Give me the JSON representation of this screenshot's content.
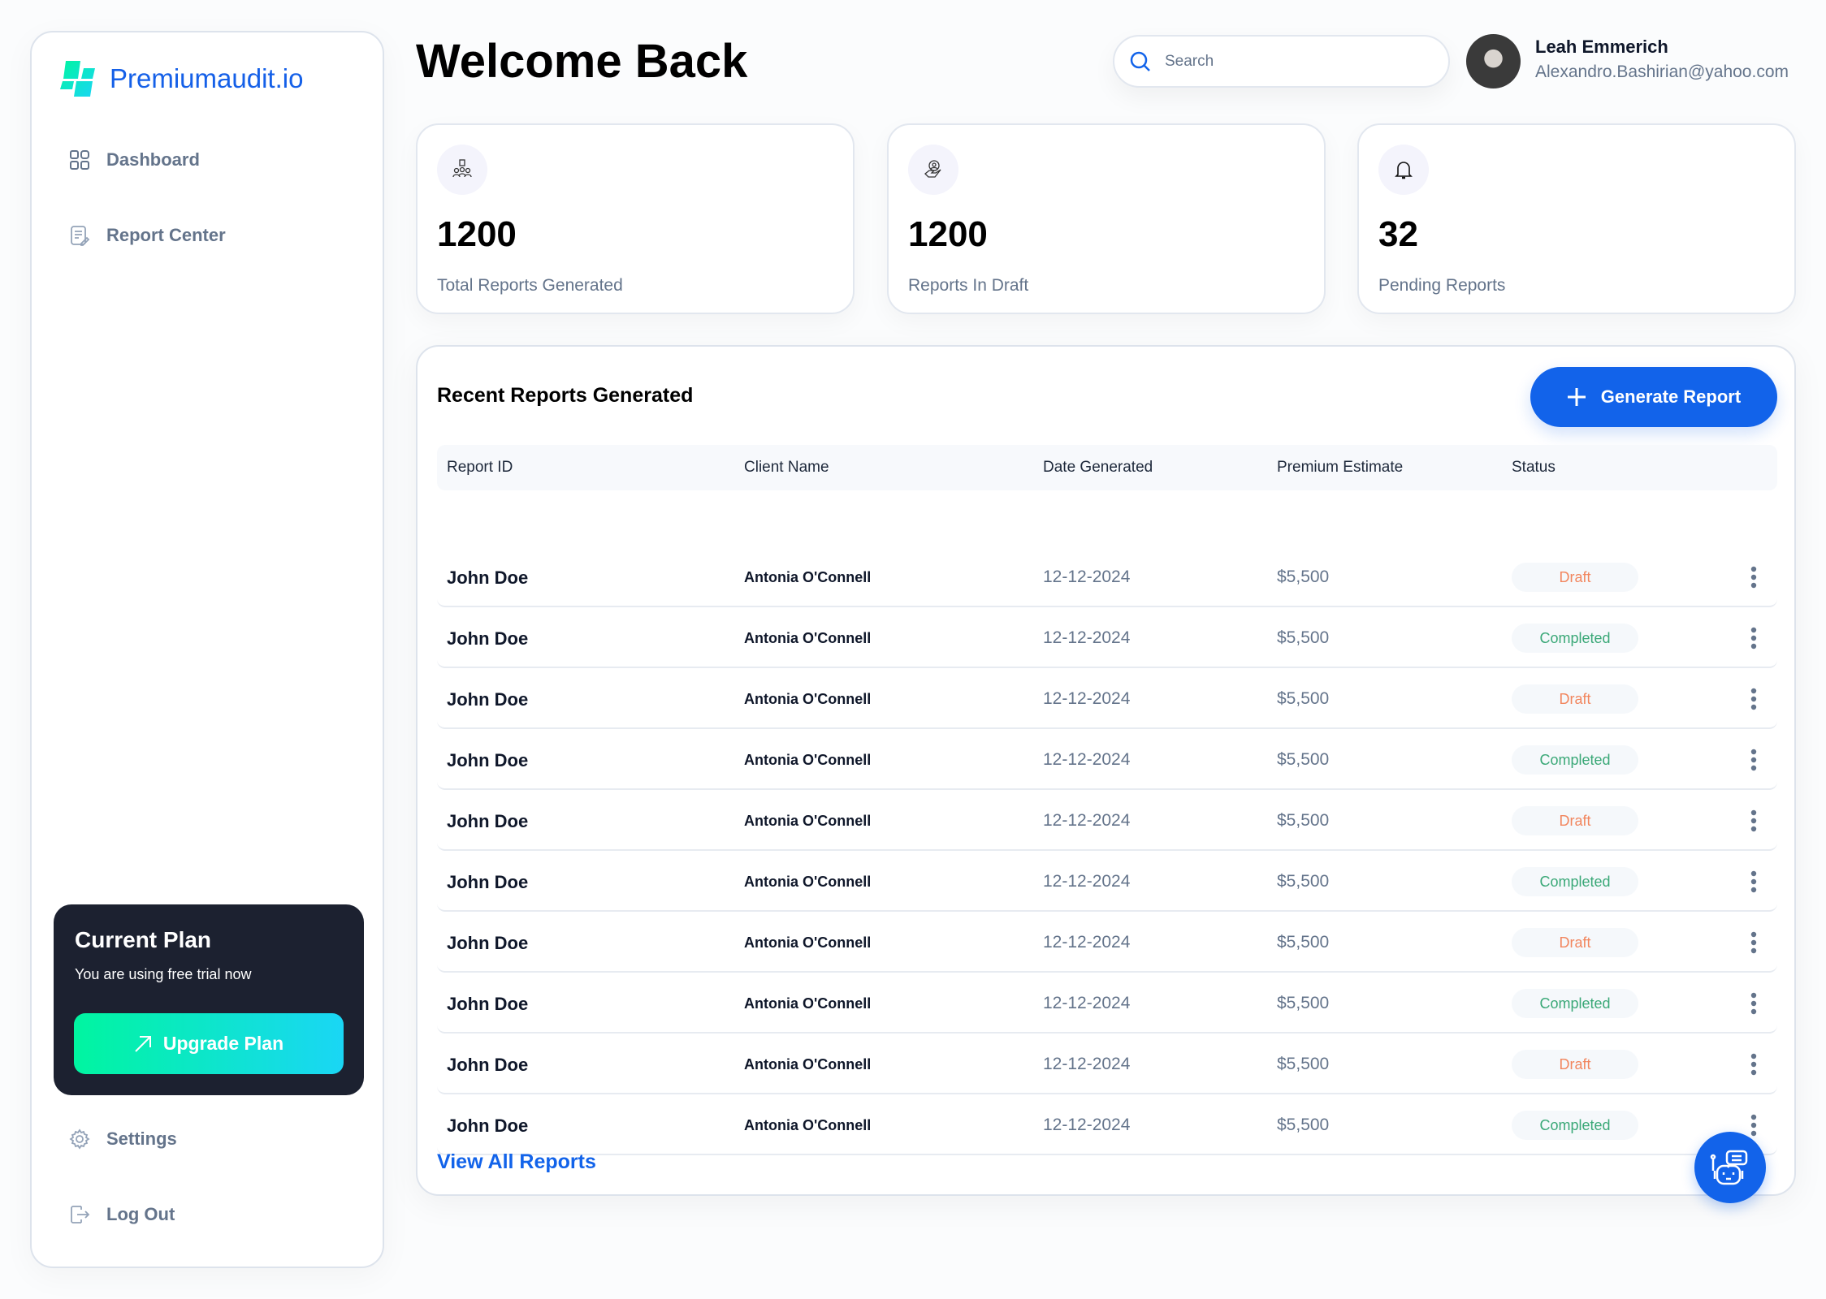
{
  "brand": {
    "name": "Premiumaudit.io",
    "color": "#1560e8"
  },
  "sidebar": {
    "items": [
      {
        "label": "Dashboard",
        "icon": "grid-icon"
      },
      {
        "label": "Report Center",
        "icon": "document-edit-icon"
      }
    ],
    "bottom_items": [
      {
        "label": "Settings",
        "icon": "gear-icon"
      },
      {
        "label": "Log Out",
        "icon": "logout-icon"
      }
    ]
  },
  "plan": {
    "title": "Current Plan",
    "subtitle": "You are using free trial now",
    "button": "Upgrade Plan"
  },
  "header": {
    "title": "Welcome Back",
    "search_placeholder": "Search",
    "user": {
      "name": "Leah Emmerich",
      "email": "Alexandro.Bashirian@yahoo.com"
    }
  },
  "stats": [
    {
      "value": "1200",
      "label": "Total Reports Generated",
      "icon": "team-checklist-icon"
    },
    {
      "value": "1200",
      "label": "Reports In Draft",
      "icon": "hand-user-icon"
    },
    {
      "value": "32",
      "label": "Pending Reports",
      "icon": "bell-icon"
    }
  ],
  "reports": {
    "title": "Recent Reports Generated",
    "generate_button": "Generate Report",
    "view_all": "View All Reports",
    "columns": [
      "Report ID",
      "Client Name",
      "Date Generated",
      "Premium Estimate",
      "Status"
    ],
    "status_colors": {
      "Draft": "#f2865e",
      "Completed": "#3aa877"
    },
    "rows": [
      [
        "John Doe",
        "Antonia O'Connell",
        "12-12-2024",
        "$5,500",
        "Draft"
      ],
      [
        "John Doe",
        "Antonia O'Connell",
        "12-12-2024",
        "$5,500",
        "Completed"
      ],
      [
        "John Doe",
        "Antonia O'Connell",
        "12-12-2024",
        "$5,500",
        "Draft"
      ],
      [
        "John Doe",
        "Antonia O'Connell",
        "12-12-2024",
        "$5,500",
        "Completed"
      ],
      [
        "John Doe",
        "Antonia O'Connell",
        "12-12-2024",
        "$5,500",
        "Draft"
      ],
      [
        "John Doe",
        "Antonia O'Connell",
        "12-12-2024",
        "$5,500",
        "Completed"
      ],
      [
        "John Doe",
        "Antonia O'Connell",
        "12-12-2024",
        "$5,500",
        "Draft"
      ],
      [
        "John Doe",
        "Antonia O'Connell",
        "12-12-2024",
        "$5,500",
        "Completed"
      ],
      [
        "John Doe",
        "Antonia O'Connell",
        "12-12-2024",
        "$5,500",
        "Draft"
      ],
      [
        "John Doe",
        "Antonia O'Connell",
        "12-12-2024",
        "$5,500",
        "Completed"
      ]
    ]
  },
  "chatbot_icon": "robot-chat-icon"
}
